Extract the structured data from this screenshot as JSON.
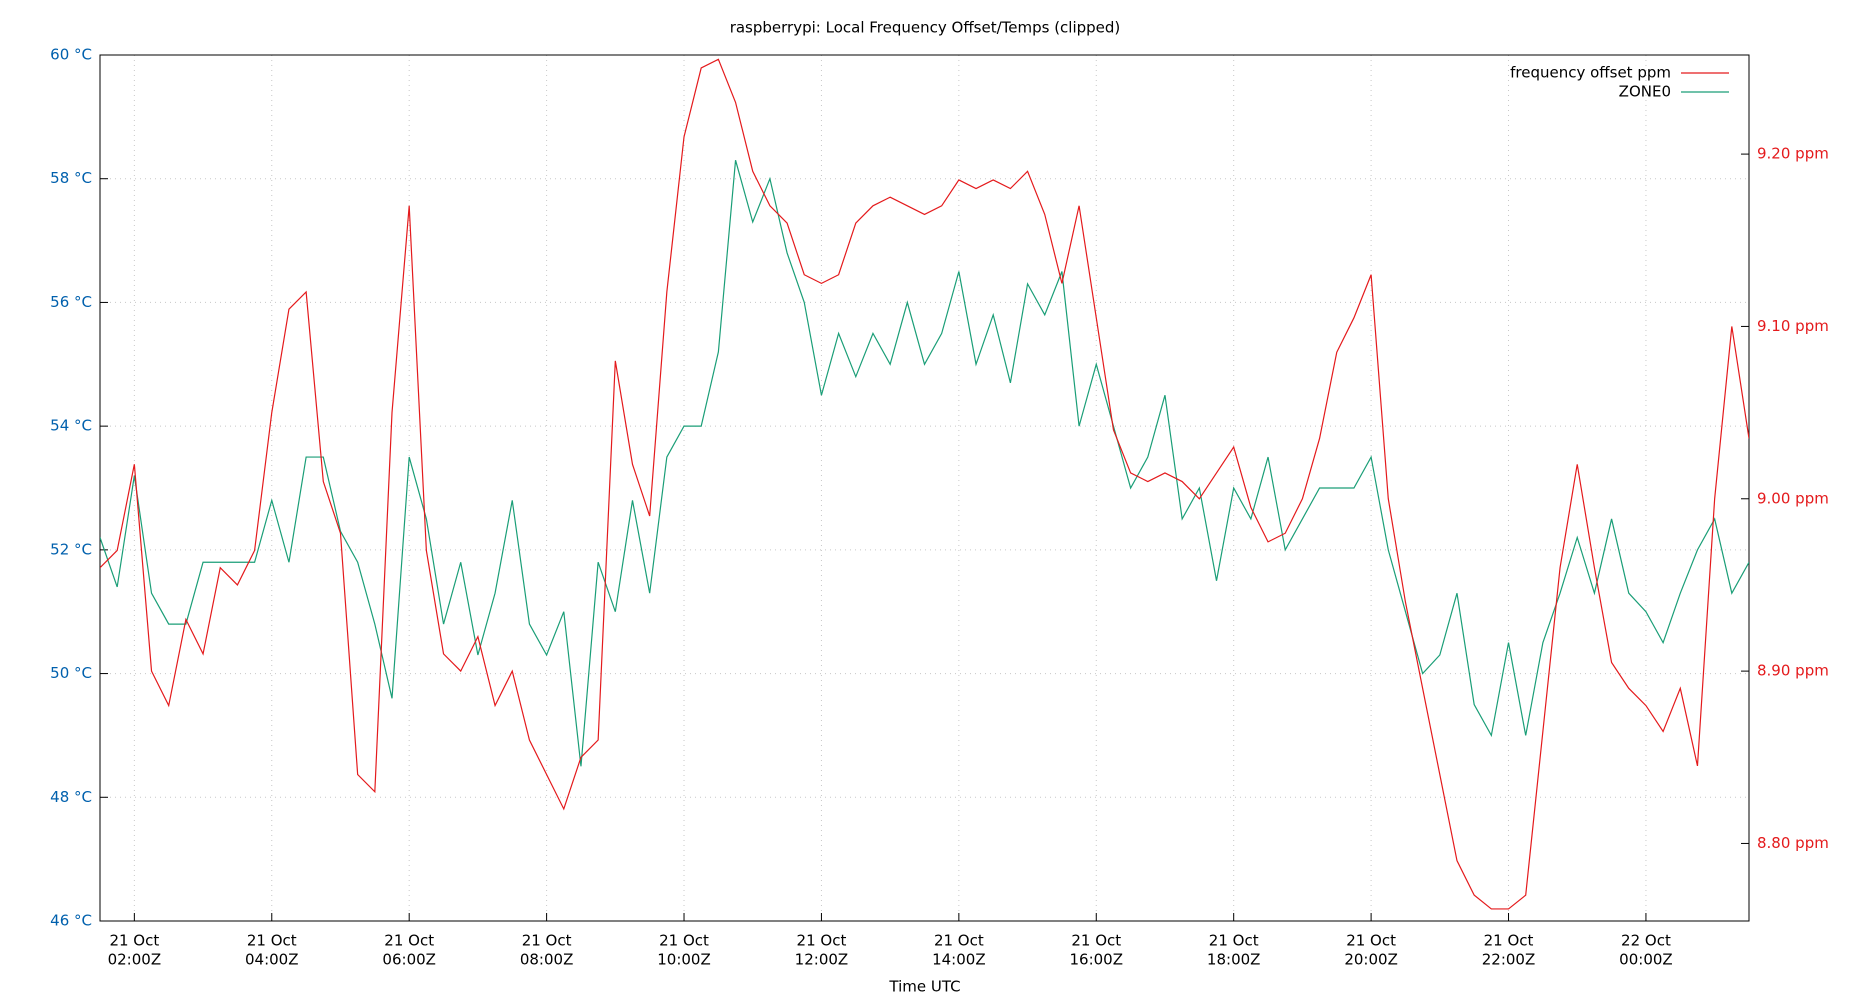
{
  "chart_data": {
    "type": "line",
    "title": "raspberrypi: Local Frequency Offset/Temps (clipped)",
    "x_label": "Time UTC",
    "xlim": [
      "21 Oct 01:30Z",
      "22 Oct 01:30Z"
    ],
    "xticks": [
      {
        "value": "21 Oct 02:00Z",
        "label": [
          "21 Oct",
          "02:00Z"
        ]
      },
      {
        "value": "21 Oct 04:00Z",
        "label": [
          "21 Oct",
          "04:00Z"
        ]
      },
      {
        "value": "21 Oct 06:00Z",
        "label": [
          "21 Oct",
          "06:00Z"
        ]
      },
      {
        "value": "21 Oct 08:00Z",
        "label": [
          "21 Oct",
          "08:00Z"
        ]
      },
      {
        "value": "21 Oct 10:00Z",
        "label": [
          "21 Oct",
          "10:00Z"
        ]
      },
      {
        "value": "21 Oct 12:00Z",
        "label": [
          "21 Oct",
          "12:00Z"
        ]
      },
      {
        "value": "21 Oct 14:00Z",
        "label": [
          "21 Oct",
          "14:00Z"
        ]
      },
      {
        "value": "21 Oct 16:00Z",
        "label": [
          "21 Oct",
          "16:00Z"
        ]
      },
      {
        "value": "21 Oct 18:00Z",
        "label": [
          "21 Oct",
          "18:00Z"
        ]
      },
      {
        "value": "21 Oct 20:00Z",
        "label": [
          "21 Oct",
          "20:00Z"
        ]
      },
      {
        "value": "21 Oct 22:00Z",
        "label": [
          "21 Oct",
          "22:00Z"
        ]
      },
      {
        "value": "22 Oct 00:00Z",
        "label": [
          "22 Oct",
          "00:00Z"
        ]
      }
    ],
    "ylim": [
      46,
      60
    ],
    "yticks": [
      {
        "value": 46,
        "label": "46 °C"
      },
      {
        "value": 48,
        "label": "48 °C"
      },
      {
        "value": 50,
        "label": "50 °C"
      },
      {
        "value": 52,
        "label": "52 °C"
      },
      {
        "value": 54,
        "label": "54 °C"
      },
      {
        "value": 56,
        "label": "56 °C"
      },
      {
        "value": 58,
        "label": "58 °C"
      },
      {
        "value": 60,
        "label": "60 °C"
      }
    ],
    "ytick_color": "#0060ad",
    "y2lim": [
      8.755,
      9.2575
    ],
    "y2ticks": [
      {
        "value": 8.8,
        "label": "8.80 ppm"
      },
      {
        "value": 8.9,
        "label": "8.90 ppm"
      },
      {
        "value": 9.0,
        "label": "9.00 ppm"
      },
      {
        "value": 9.1,
        "label": "9.10 ppm"
      },
      {
        "value": 9.2,
        "label": "9.20 ppm"
      }
    ],
    "y2tick_color": "#e41a1c",
    "grid": true,
    "legend": "top-right",
    "x": [
      "21 Oct 01:30Z",
      "21 Oct 01:45Z",
      "21 Oct 02:00Z",
      "21 Oct 02:15Z",
      "21 Oct 02:30Z",
      "21 Oct 02:45Z",
      "21 Oct 03:00Z",
      "21 Oct 03:15Z",
      "21 Oct 03:30Z",
      "21 Oct 03:45Z",
      "21 Oct 04:00Z",
      "21 Oct 04:15Z",
      "21 Oct 04:30Z",
      "21 Oct 04:45Z",
      "21 Oct 05:00Z",
      "21 Oct 05:15Z",
      "21 Oct 05:30Z",
      "21 Oct 05:45Z",
      "21 Oct 06:00Z",
      "21 Oct 06:15Z",
      "21 Oct 06:30Z",
      "21 Oct 06:45Z",
      "21 Oct 07:00Z",
      "21 Oct 07:15Z",
      "21 Oct 07:30Z",
      "21 Oct 07:45Z",
      "21 Oct 08:00Z",
      "21 Oct 08:15Z",
      "21 Oct 08:30Z",
      "21 Oct 08:45Z",
      "21 Oct 09:00Z",
      "21 Oct 09:15Z",
      "21 Oct 09:30Z",
      "21 Oct 09:45Z",
      "21 Oct 10:00Z",
      "21 Oct 10:15Z",
      "21 Oct 10:30Z",
      "21 Oct 10:45Z",
      "21 Oct 11:00Z",
      "21 Oct 11:15Z",
      "21 Oct 11:30Z",
      "21 Oct 11:45Z",
      "21 Oct 12:00Z",
      "21 Oct 12:15Z",
      "21 Oct 12:30Z",
      "21 Oct 12:45Z",
      "21 Oct 13:00Z",
      "21 Oct 13:15Z",
      "21 Oct 13:30Z",
      "21 Oct 13:45Z",
      "21 Oct 14:00Z",
      "21 Oct 14:15Z",
      "21 Oct 14:30Z",
      "21 Oct 14:45Z",
      "21 Oct 15:00Z",
      "21 Oct 15:15Z",
      "21 Oct 15:30Z",
      "21 Oct 15:45Z",
      "21 Oct 16:00Z",
      "21 Oct 16:15Z",
      "21 Oct 16:30Z",
      "21 Oct 16:45Z",
      "21 Oct 17:00Z",
      "21 Oct 17:15Z",
      "21 Oct 17:30Z",
      "21 Oct 17:45Z",
      "21 Oct 18:00Z",
      "21 Oct 18:15Z",
      "21 Oct 18:30Z",
      "21 Oct 18:45Z",
      "21 Oct 19:00Z",
      "21 Oct 19:15Z",
      "21 Oct 19:30Z",
      "21 Oct 19:45Z",
      "21 Oct 20:00Z",
      "21 Oct 20:15Z",
      "21 Oct 20:30Z",
      "21 Oct 20:45Z",
      "21 Oct 21:00Z",
      "21 Oct 21:15Z",
      "21 Oct 21:30Z",
      "21 Oct 21:45Z",
      "21 Oct 22:00Z",
      "21 Oct 22:15Z",
      "21 Oct 22:30Z",
      "21 Oct 22:45Z",
      "21 Oct 23:00Z",
      "21 Oct 23:15Z",
      "21 Oct 23:30Z",
      "21 Oct 23:45Z",
      "22 Oct 00:00Z",
      "22 Oct 00:15Z",
      "22 Oct 00:30Z",
      "22 Oct 00:45Z",
      "22 Oct 01:00Z",
      "22 Oct 01:15Z",
      "22 Oct 01:30Z"
    ],
    "series": [
      {
        "name": "frequency offset ppm",
        "color": "#e41a1c",
        "axis": "y2",
        "values": [
          8.96,
          8.97,
          9.02,
          8.9,
          8.88,
          8.93,
          8.91,
          8.96,
          8.95,
          8.97,
          9.05,
          9.11,
          9.12,
          9.01,
          8.98,
          8.84,
          8.83,
          9.05,
          9.17,
          8.97,
          8.91,
          8.9,
          8.92,
          8.88,
          8.9,
          8.86,
          8.84,
          8.82,
          8.85,
          8.86,
          9.08,
          9.02,
          8.99,
          9.12,
          9.21,
          9.25,
          9.255,
          9.23,
          9.19,
          9.17,
          9.16,
          9.13,
          9.125,
          9.13,
          9.16,
          9.17,
          9.175,
          9.17,
          9.165,
          9.17,
          9.185,
          9.18,
          9.185,
          9.18,
          9.19,
          9.165,
          9.125,
          9.17,
          9.105,
          9.04,
          9.015,
          9.01,
          9.015,
          9.01,
          9.0,
          9.015,
          9.03,
          8.995,
          8.975,
          8.98,
          9.0,
          9.035,
          9.085,
          9.105,
          9.13,
          9.0,
          8.94,
          8.89,
          8.84,
          8.79,
          8.77,
          8.762,
          8.762,
          8.77,
          8.865,
          8.96,
          9.02,
          8.96,
          8.905,
          8.89,
          8.88,
          8.865,
          8.89,
          8.845,
          9.0,
          9.1,
          9.035
        ]
      },
      {
        "name": "ZONE0",
        "color": "#1a9e77",
        "values": [
          52.2,
          51.4,
          53.2,
          51.3,
          50.8,
          50.8,
          51.8,
          51.8,
          51.8,
          51.8,
          52.8,
          51.8,
          53.5,
          53.5,
          52.3,
          51.8,
          50.8,
          49.6,
          53.5,
          52.5,
          50.8,
          51.8,
          50.3,
          51.3,
          52.8,
          50.8,
          50.3,
          51.0,
          48.5,
          51.8,
          51.0,
          52.8,
          51.3,
          53.5,
          54.0,
          54.0,
          55.2,
          58.3,
          57.3,
          58.0,
          56.8,
          56.0,
          54.5,
          55.5,
          54.8,
          55.5,
          55.0,
          56.0,
          55.0,
          55.5,
          56.5,
          55.0,
          55.8,
          54.7,
          56.3,
          55.8,
          56.5,
          54.0,
          55.0,
          54.0,
          53.0,
          53.5,
          54.5,
          52.5,
          53.0,
          51.5,
          53.0,
          52.5,
          53.5,
          52.0,
          52.5,
          53.0,
          53.0,
          53.0,
          53.5,
          52.0,
          51.0,
          50.0,
          50.3,
          51.3,
          49.5,
          49.0,
          50.5,
          49.0,
          50.5,
          51.3,
          52.2,
          51.3,
          52.5,
          51.3,
          51.0,
          50.5,
          51.3,
          52.0,
          52.5,
          51.3,
          51.8
        ]
      }
    ]
  }
}
